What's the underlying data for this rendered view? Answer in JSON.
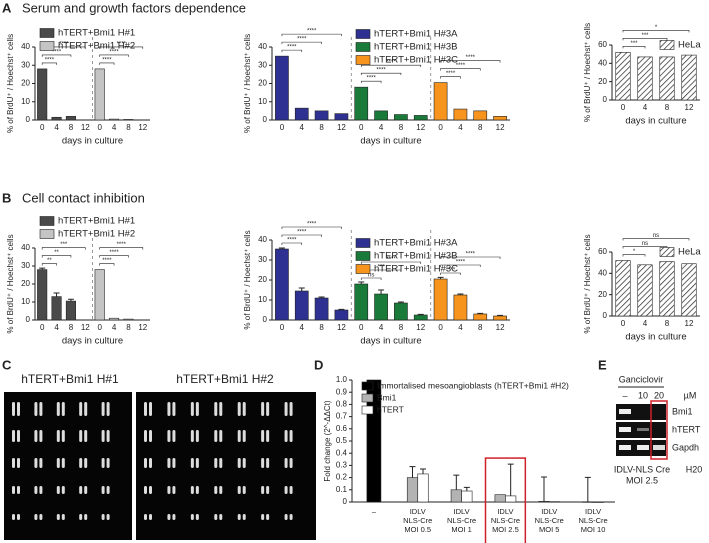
{
  "panels": {
    "labels": [
      "A",
      "B",
      "C",
      "D",
      "E"
    ],
    "titles": [
      "Serum and growth factors dependence",
      "Cell contact inhibition"
    ],
    "karyotype": {
      "labels": [
        "hTERT+Bmi1 H#1",
        "hTERT+Bmi1 H#2"
      ]
    },
    "gel": {
      "treatment": "Ganciclovir",
      "lanes": [
        "–",
        "10",
        "20"
      ],
      "unit": "µM",
      "genes": [
        "Bmi1",
        "hTERT",
        "Gapdh"
      ],
      "construct": "IDLV-NLS Cre",
      "moi": "MOI 2.5",
      "control": "H20"
    }
  },
  "chart_data": [
    {
      "type": "bar",
      "separators": true,
      "legend": "upper left",
      "xlabel": "days in culture",
      "ylabel": "% of BrdU⁺ / Hoechst⁺ cells",
      "categories": [
        "0",
        "4",
        "8",
        "12"
      ],
      "ylim": [
        0,
        40
      ],
      "yticks": [
        0,
        10,
        20,
        30,
        40
      ],
      "series": [
        {
          "name": "hTERT+Bmi1  H#1",
          "color": "#4a4a4a",
          "values": [
            28,
            1.5,
            2,
            0
          ],
          "significance": [
            null,
            "****",
            "****",
            "****"
          ]
        },
        {
          "name": "hTERT+Bmi1  H#2",
          "color": "#c4c4c4",
          "values": [
            28,
            0.5,
            0.3,
            0
          ],
          "significance": [
            null,
            "****",
            "****",
            "****"
          ]
        }
      ]
    },
    {
      "type": "bar",
      "separators": true,
      "legend": "upper center",
      "xlabel": "days in culture",
      "ylabel": "% of BrdU⁺ / Hoechst⁺ cells",
      "categories": [
        "0",
        "4",
        "8",
        "12"
      ],
      "ylim": [
        0,
        40
      ],
      "yticks": [
        0,
        10,
        20,
        30,
        40
      ],
      "series": [
        {
          "name": "hTERT+Bmi1  H#3A",
          "color": "#2e3192",
          "values": [
            35,
            6.5,
            5,
            3.5
          ],
          "significance": [
            null,
            "****",
            "****",
            "****"
          ]
        },
        {
          "name": "hTERT+Bmi1  H#3B",
          "color": "#1a7a3a",
          "values": [
            18,
            5,
            3,
            2.5
          ],
          "significance": [
            null,
            "****",
            "****",
            "****"
          ]
        },
        {
          "name": "hTERT+Bmi1  H#3C",
          "color": "#f7941d",
          "values": [
            20.5,
            6,
            5,
            2
          ],
          "significance": [
            null,
            "****",
            "****",
            "****"
          ]
        }
      ]
    },
    {
      "type": "bar",
      "separators": true,
      "legend": "upper right",
      "xlabel": "days in culture",
      "ylabel": "% of BrdU⁺ / Hoechst⁺ cells",
      "categories": [
        "0",
        "4",
        "8",
        "12"
      ],
      "ylim": [
        0,
        60
      ],
      "yticks": [
        0,
        20,
        40,
        60
      ],
      "series": [
        {
          "name": "HeLa",
          "color": "#ffffff",
          "hatch": true,
          "values": [
            52,
            47,
            47,
            49
          ],
          "significance": [
            null,
            "***",
            "***",
            "*"
          ]
        }
      ]
    },
    {
      "type": "bar",
      "separators": true,
      "legend": "upper left",
      "xlabel": "days in culture",
      "ylabel": "% of BrdU⁺ / Hoechst⁺ cells",
      "categories": [
        "0",
        "4",
        "8",
        "12"
      ],
      "ylim": [
        0,
        40
      ],
      "yticks": [
        0,
        10,
        20,
        30,
        40
      ],
      "series": [
        {
          "name": "hTERT+Bmi1  H#1",
          "color": "#4a4a4a",
          "values": [
            28,
            13,
            10.5,
            0
          ],
          "errors": [
            0.8,
            2,
            1,
            0
          ],
          "significance": [
            null,
            "**",
            "**",
            "***"
          ]
        },
        {
          "name": "hTERT+Bmi1  H#2",
          "color": "#c4c4c4",
          "values": [
            28,
            1,
            0.5,
            0
          ],
          "significance": [
            null,
            "****",
            "****",
            "****"
          ]
        }
      ]
    },
    {
      "type": "bar",
      "separators": true,
      "legend": "upper center",
      "xlabel": "days in culture",
      "ylabel": "% of BrdU⁺ / Hoechst⁺ cells",
      "categories": [
        "0",
        "4",
        "8",
        "12"
      ],
      "ylim": [
        0,
        40
      ],
      "yticks": [
        0,
        10,
        20,
        30,
        40
      ],
      "series": [
        {
          "name": "hTERT+Bmi1  H#3A",
          "color": "#2e3192",
          "values": [
            35.5,
            14.5,
            11,
            5
          ],
          "errors": [
            0.5,
            1.5,
            0.5,
            0.3
          ],
          "significance": [
            null,
            "****",
            "****",
            "****"
          ]
        },
        {
          "name": "hTERT+Bmi1  H#3B",
          "color": "#1a7a3a",
          "values": [
            18,
            13,
            8.5,
            2.5
          ],
          "errors": [
            1,
            2,
            0.5,
            0.3
          ],
          "significance": [
            null,
            "ns",
            "***",
            "****"
          ]
        },
        {
          "name": "hTERT+Bmi1  H#3C",
          "color": "#f7941d",
          "values": [
            20.5,
            12.5,
            3,
            2
          ],
          "errors": [
            0.8,
            0.5,
            0.3,
            0.3
          ],
          "significance": [
            null,
            "****",
            "****",
            "****"
          ]
        }
      ]
    },
    {
      "type": "bar",
      "separators": true,
      "legend": "upper right",
      "xlabel": "days in culture",
      "ylabel": "% of BrdU⁺ / Hoechst⁺ cells",
      "categories": [
        "0",
        "4",
        "8",
        "12"
      ],
      "ylim": [
        0,
        60
      ],
      "yticks": [
        0,
        20,
        40,
        60
      ],
      "series": [
        {
          "name": "HeLa",
          "color": "#ffffff",
          "hatch": true,
          "values": [
            52,
            48,
            51,
            49
          ],
          "significance": [
            null,
            "*",
            "ns",
            "ns"
          ]
        }
      ]
    },
    {
      "type": "bar",
      "separators": false,
      "legend": "upper left",
      "ylabel": "Fold change (2^-ΔΔCt)",
      "highlight": 3,
      "categories": [
        "–",
        "IDLV\nNLS-Cre\nMOI 0.5",
        "IDLV\nNLS-Cre\nMOI 1",
        "IDLV\nNLS-Cre\nMOI 2.5",
        "IDLV\nNLS-Cre\nMOI 5",
        "IDLV\nNLS-Cre\nMOI 10"
      ],
      "ylim": [
        0,
        1
      ],
      "yticks": [
        0,
        0.1,
        0.2,
        0.3,
        0.4,
        0.5,
        0.6,
        0.7,
        0.8,
        0.9,
        {
          "value": 1,
          "label": "1.0"
        }
      ],
      "series": [
        {
          "name": "Immortalised mesoangioblasts (hTERT+Bmi1 #H2)",
          "color": "#000000",
          "values": [
            1,
            null,
            null,
            null,
            null,
            null
          ]
        },
        {
          "name": "Bmi1",
          "color": "#b3b3b3",
          "values": [
            null,
            0.2,
            0.1,
            0.06,
            0.005,
            0.002
          ],
          "errors": [
            null,
            0.09,
            0.12,
            null,
            0.2,
            0.2
          ]
        },
        {
          "name": "hTERT",
          "color": "#ffffff",
          "values": [
            null,
            0.23,
            0.09,
            0.05,
            0.003,
            0.001
          ],
          "errors": [
            null,
            0.04,
            0.03,
            0.26,
            null,
            null
          ]
        }
      ]
    }
  ]
}
